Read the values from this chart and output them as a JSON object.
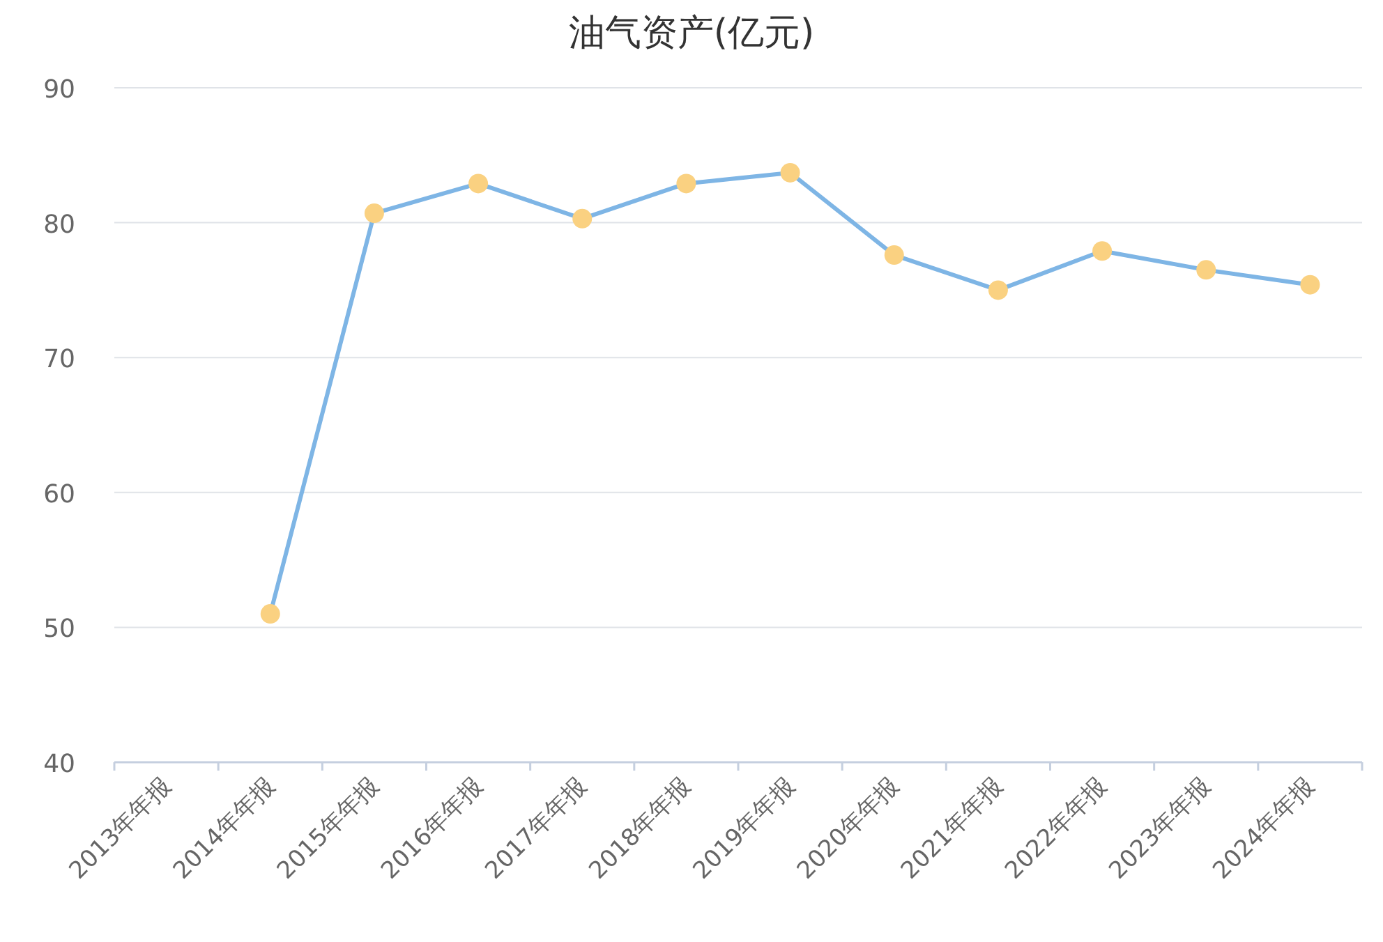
{
  "chart_data": {
    "type": "line",
    "title": "油气资产(亿元)",
    "categories": [
      "2013年年报",
      "2014年年报",
      "2015年年报",
      "2016年年报",
      "2017年年报",
      "2018年年报",
      "2019年年报",
      "2020年年报",
      "2021年年报",
      "2022年年报",
      "2023年年报",
      "2024年年报"
    ],
    "series": [
      {
        "color": "#7eb5e5",
        "colors": [
          null,
          "#fad181",
          "#fad181",
          "#fad181",
          "#fad181",
          "#fad181",
          "#fad181",
          "#fad181",
          "#fad181",
          "#fad181",
          "#fad181",
          "#fad181"
        ],
        "values": [
          null,
          51.0,
          80.7,
          82.9,
          80.3,
          82.9,
          83.7,
          77.6,
          75.0,
          77.9,
          76.5,
          75.4
        ]
      }
    ],
    "ylim": [
      40,
      90
    ],
    "yticks": [
      40,
      50,
      60,
      70,
      80,
      90
    ],
    "grid": "y",
    "marker": "circle",
    "line_style": "solid"
  }
}
